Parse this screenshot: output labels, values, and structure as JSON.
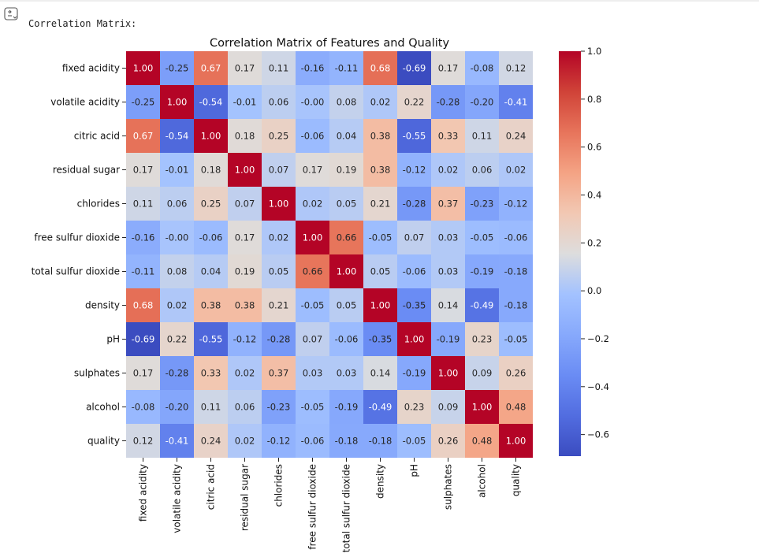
{
  "console": {
    "output_text": "Correlation Matrix:"
  },
  "chart_data": {
    "type": "heatmap",
    "title": "Correlation Matrix of Features and Quality",
    "labels": [
      "fixed acidity",
      "volatile acidity",
      "citric acid",
      "residual sugar",
      "chlorides",
      "free sulfur dioxide",
      "total sulfur dioxide",
      "density",
      "pH",
      "sulphates",
      "alcohol",
      "quality"
    ],
    "values": [
      [
        1.0,
        -0.25,
        0.67,
        0.17,
        0.11,
        -0.16,
        -0.11,
        0.68,
        -0.69,
        0.17,
        -0.08,
        0.12
      ],
      [
        -0.25,
        1.0,
        -0.54,
        -0.01,
        0.06,
        -0.0,
        0.08,
        0.02,
        0.22,
        -0.28,
        -0.2,
        -0.41
      ],
      [
        0.67,
        -0.54,
        1.0,
        0.18,
        0.25,
        -0.06,
        0.04,
        0.38,
        -0.55,
        0.33,
        0.11,
        0.24
      ],
      [
        0.17,
        -0.01,
        0.18,
        1.0,
        0.07,
        0.17,
        0.19,
        0.38,
        -0.12,
        0.02,
        0.06,
        0.02
      ],
      [
        0.11,
        0.06,
        0.25,
        0.07,
        1.0,
        0.02,
        0.05,
        0.21,
        -0.28,
        0.37,
        -0.23,
        -0.12
      ],
      [
        -0.16,
        -0.0,
        -0.06,
        0.17,
        0.02,
        1.0,
        0.66,
        -0.05,
        0.07,
        0.03,
        -0.05,
        -0.06
      ],
      [
        -0.11,
        0.08,
        0.04,
        0.19,
        0.05,
        0.66,
        1.0,
        0.05,
        -0.06,
        0.03,
        -0.19,
        -0.18
      ],
      [
        0.68,
        0.02,
        0.38,
        0.38,
        0.21,
        -0.05,
        0.05,
        1.0,
        -0.35,
        0.14,
        -0.49,
        -0.18
      ],
      [
        -0.69,
        0.22,
        -0.55,
        -0.12,
        -0.28,
        0.07,
        -0.06,
        -0.35,
        1.0,
        -0.19,
        0.23,
        -0.05
      ],
      [
        0.17,
        -0.28,
        0.33,
        0.02,
        0.37,
        0.03,
        0.03,
        0.14,
        -0.19,
        1.0,
        0.09,
        0.26
      ],
      [
        -0.08,
        -0.2,
        0.11,
        0.06,
        -0.23,
        -0.05,
        -0.19,
        -0.49,
        0.23,
        0.09,
        1.0,
        0.48
      ],
      [
        0.12,
        -0.41,
        0.24,
        0.02,
        -0.12,
        -0.06,
        -0.18,
        -0.18,
        -0.05,
        0.26,
        0.48,
        1.0
      ]
    ],
    "value_labels": [
      [
        "1.00",
        "-0.25",
        "0.67",
        "0.17",
        "0.11",
        "-0.16",
        "-0.11",
        "0.68",
        "-0.69",
        "0.17",
        "-0.08",
        "0.12"
      ],
      [
        "-0.25",
        "1.00",
        "-0.54",
        "-0.01",
        "0.06",
        "-0.00",
        "0.08",
        "0.02",
        "0.22",
        "-0.28",
        "-0.20",
        "-0.41"
      ],
      [
        "0.67",
        "-0.54",
        "1.00",
        "0.18",
        "0.25",
        "-0.06",
        "0.04",
        "0.38",
        "-0.55",
        "0.33",
        "0.11",
        "0.24"
      ],
      [
        "0.17",
        "-0.01",
        "0.18",
        "1.00",
        "0.07",
        "0.17",
        "0.19",
        "0.38",
        "-0.12",
        "0.02",
        "0.06",
        "0.02"
      ],
      [
        "0.11",
        "0.06",
        "0.25",
        "0.07",
        "1.00",
        "0.02",
        "0.05",
        "0.21",
        "-0.28",
        "0.37",
        "-0.23",
        "-0.12"
      ],
      [
        "-0.16",
        "-0.00",
        "-0.06",
        "0.17",
        "0.02",
        "1.00",
        "0.66",
        "-0.05",
        "0.07",
        "0.03",
        "-0.05",
        "-0.06"
      ],
      [
        "-0.11",
        "0.08",
        "0.04",
        "0.19",
        "0.05",
        "0.66",
        "1.00",
        "0.05",
        "-0.06",
        "0.03",
        "-0.19",
        "-0.18"
      ],
      [
        "0.68",
        "0.02",
        "0.38",
        "0.38",
        "0.21",
        "-0.05",
        "0.05",
        "1.00",
        "-0.35",
        "0.14",
        "-0.49",
        "-0.18"
      ],
      [
        "-0.69",
        "0.22",
        "-0.55",
        "-0.12",
        "-0.28",
        "0.07",
        "-0.06",
        "-0.35",
        "1.00",
        "-0.19",
        "0.23",
        "-0.05"
      ],
      [
        "0.17",
        "-0.28",
        "0.33",
        "0.02",
        "0.37",
        "0.03",
        "0.03",
        "0.14",
        "-0.19",
        "1.00",
        "0.09",
        "0.26"
      ],
      [
        "-0.08",
        "-0.20",
        "0.11",
        "0.06",
        "-0.23",
        "-0.05",
        "-0.19",
        "-0.49",
        "0.23",
        "0.09",
        "1.00",
        "0.48"
      ],
      [
        "0.12",
        "-0.41",
        "0.24",
        "0.02",
        "-0.12",
        "-0.06",
        "-0.18",
        "-0.18",
        "-0.05",
        "0.26",
        "0.48",
        "1.00"
      ]
    ],
    "colormap": "coolwarm",
    "vmin": -0.69,
    "vmax": 1.0,
    "colorbar_ticks": [
      1.0,
      0.8,
      0.6,
      0.4,
      0.2,
      0.0,
      -0.2,
      -0.4,
      -0.6
    ],
    "colorbar_tick_labels": [
      "1.0",
      "0.8",
      "0.6",
      "0.4",
      "0.2",
      "0.0",
      "−0.2",
      "−0.4",
      "−0.6"
    ],
    "xlabel": "",
    "ylabel": ""
  }
}
